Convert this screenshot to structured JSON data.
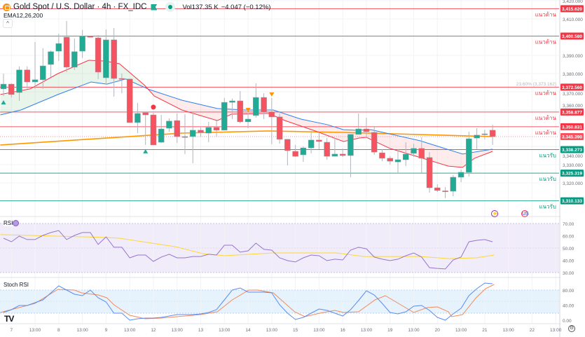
{
  "header": {
    "title": "Gold Spot / U.S. Dollar · 4h · FX_IDC",
    "volume": "Vol137.35 K",
    "change": "−4.047 (−0.12%)",
    "indicator": "EMA12,26,200",
    "collapse_icon": "^"
  },
  "colors": {
    "up": "#22ab94",
    "down": "#f7525f",
    "ema12": "#f23645",
    "ema26": "#2f80ed",
    "ema200": "#ff9800",
    "resistance": "#f23645",
    "support": "#089981",
    "rsi": "#9575cd",
    "rsi_ma": "#fdd835",
    "stoch_k": "#5b8def",
    "stoch_d": "#f48a5b"
  },
  "price_axis": {
    "ticks": [
      3420,
      3410,
      3390,
      3380,
      3370,
      3360,
      3340,
      3330,
      3320
    ],
    "tick_labels": [
      "3,420.000",
      "3,410.000",
      "3,390.000",
      "3,380.000",
      "3,370.000",
      "3,360.000",
      "3,340.000",
      "3,330.000",
      "3,320.000"
    ],
    "current_price": 3345.39,
    "current_price_label": "3,345.390"
  },
  "levels": [
    {
      "value": 3415.62,
      "price_label": "3,415.620",
      "type": "resistance",
      "label": "แนวต้าน"
    },
    {
      "value": 3400.58,
      "price_label": "3,400.580",
      "type": "resistance",
      "label": "แนวต้าน"
    },
    {
      "value": 3372.56,
      "price_label": "3,372.560",
      "type": "resistance",
      "label": "แนวต้าน"
    },
    {
      "value": 3358.877,
      "price_label": "3,358.877",
      "type": "resistance",
      "label": "แนวต้าน"
    },
    {
      "value": 3350.831,
      "price_label": "3,350.831",
      "type": "resistance",
      "label": "แนวต้าน"
    },
    {
      "value": 3338.273,
      "price_label": "3,338.273",
      "type": "support",
      "label": "แนวรับ"
    },
    {
      "value": 3325.319,
      "price_label": "3,325.319",
      "type": "support",
      "label": "แนวรับ"
    },
    {
      "value": 3310.133,
      "price_label": "3,310.133",
      "type": "support",
      "label": "แนวรับ"
    }
  ],
  "fib_label": "23.60% (3,373.162)",
  "chart_data": {
    "type": "candlestick",
    "ohlc": [
      [
        3371.6,
        3380.0,
        3367.7,
        3374.2
      ],
      [
        3374.2,
        3374.6,
        3366.9,
        3368.5
      ],
      [
        3369.6,
        3383.9,
        3365.0,
        3382.0
      ],
      [
        3382.0,
        3383.9,
        3371.6,
        3375.4
      ],
      [
        3375.4,
        3397.3,
        3371.6,
        3376.6
      ],
      [
        3376.6,
        3393.9,
        3371.6,
        3384.2
      ],
      [
        3385.0,
        3392.7,
        3378.1,
        3392.0
      ],
      [
        3392.3,
        3401.9,
        3387.0,
        3396.5
      ],
      [
        3400.0,
        3408.9,
        3380.8,
        3383.5
      ],
      [
        3383.5,
        3399.2,
        3382.0,
        3392.0
      ],
      [
        3392.3,
        3403.9,
        3388.5,
        3400.4
      ],
      [
        3400.4,
        3400.6,
        3399.8,
        3400.0
      ],
      [
        3399.6,
        3401.2,
        3377.0,
        3380.8
      ],
      [
        3377.7,
        3404.2,
        3374.2,
        3398.5
      ],
      [
        3398.5,
        3405.0,
        3367.3,
        3377.3
      ],
      [
        3377.3,
        3380.0,
        3369.2,
        3377.0
      ],
      [
        3377.0,
        3377.0,
        3353.1,
        3353.1
      ],
      [
        3353.1,
        3363.9,
        3347.3,
        3358.1
      ],
      [
        3358.5,
        3359.2,
        3340.8,
        3357.3
      ],
      [
        3357.3,
        3358.5,
        3340.8,
        3340.8
      ],
      [
        3342.3,
        3357.3,
        3341.9,
        3349.6
      ],
      [
        3350.0,
        3355.4,
        3348.1,
        3353.9
      ],
      [
        3354.2,
        3358.1,
        3341.9,
        3345.4
      ],
      [
        3345.4,
        3357.7,
        3335.8,
        3345.2
      ],
      [
        3345.4,
        3358.9,
        3330.8,
        3348.9
      ],
      [
        3348.9,
        3350.4,
        3345.4,
        3347.7
      ],
      [
        3347.3,
        3353.5,
        3342.3,
        3350.4
      ],
      [
        3350.4,
        3354.2,
        3345.4,
        3348.9
      ],
      [
        3348.9,
        3366.6,
        3348.9,
        3364.2
      ],
      [
        3364.2,
        3366.2,
        3355.0,
        3365.0
      ],
      [
        3365.0,
        3370.4,
        3352.7,
        3353.5
      ],
      [
        3353.5,
        3358.1,
        3350.0,
        3355.0
      ],
      [
        3357.0,
        3374.6,
        3355.8,
        3366.9
      ],
      [
        3366.9,
        3369.2,
        3355.0,
        3358.9
      ],
      [
        3358.9,
        3366.6,
        3341.2,
        3356.2
      ],
      [
        3356.2,
        3358.1,
        3341.5,
        3343.9
      ],
      [
        3343.9,
        3343.9,
        3329.6,
        3337.7
      ],
      [
        3337.3,
        3340.8,
        3334.2,
        3334.6
      ],
      [
        3335.4,
        3340.0,
        3331.5,
        3339.2
      ],
      [
        3339.2,
        3348.5,
        3336.2,
        3343.5
      ],
      [
        3343.5,
        3348.1,
        3338.5,
        3342.7
      ],
      [
        3342.3,
        3344.6,
        3332.7,
        3334.6
      ],
      [
        3334.6,
        3344.6,
        3334.6,
        3335.8
      ],
      [
        3335.8,
        3338.9,
        3334.2,
        3335.0
      ],
      [
        3335.0,
        3346.6,
        3323.1,
        3346.6
      ],
      [
        3346.6,
        3358.1,
        3346.6,
        3349.6
      ],
      [
        3349.6,
        3355.8,
        3344.6,
        3348.1
      ],
      [
        3347.7,
        3351.2,
        3335.4,
        3336.9
      ],
      [
        3336.5,
        3338.5,
        3331.9,
        3333.5
      ],
      [
        3333.5,
        3334.6,
        3330.0,
        3331.9
      ],
      [
        3331.5,
        3338.5,
        3325.4,
        3332.7
      ],
      [
        3332.7,
        3342.3,
        3329.2,
        3335.8
      ],
      [
        3336.2,
        3341.5,
        3334.2,
        3338.9
      ],
      [
        3338.9,
        3345.0,
        3325.4,
        3333.5
      ],
      [
        3333.9,
        3336.9,
        3314.6,
        3317.3
      ],
      [
        3317.3,
        3319.2,
        3315.0,
        3315.8
      ],
      [
        3315.6,
        3317.7,
        3311.6,
        3315.4
      ],
      [
        3315.4,
        3324.2,
        3312.7,
        3323.1
      ],
      [
        3323.1,
        3327.3,
        3320.4,
        3325.8
      ],
      [
        3325.8,
        3348.1,
        3323.5,
        3344.2
      ],
      [
        3344.6,
        3350.0,
        3338.5,
        3346.2
      ],
      [
        3346.6,
        3349.2,
        3343.9,
        3346.9
      ],
      [
        3348.9,
        3351.9,
        3340.8,
        3345.4
      ]
    ],
    "ema12": [
      [
        -0.4,
        3368.5
      ],
      [
        3.4,
        3371.6
      ],
      [
        6.9,
        3380.0
      ],
      [
        10.8,
        3387.3
      ],
      [
        12.9,
        3386.9
      ],
      [
        14.7,
        3385.4
      ],
      [
        17.9,
        3373.5
      ],
      [
        19.1,
        3367.7
      ],
      [
        22.6,
        3360.0
      ],
      [
        27.1,
        3354.2
      ],
      [
        28.9,
        3357.7
      ],
      [
        33.6,
        3358.1
      ],
      [
        35.7,
        3354.2
      ],
      [
        39.5,
        3348.5
      ],
      [
        43.1,
        3342.7
      ],
      [
        45.1,
        3344.6
      ],
      [
        46,
        3345.0
      ],
      [
        49,
        3338.9
      ],
      [
        52,
        3335.0
      ],
      [
        56.4,
        3329.2
      ],
      [
        58.2,
        3328.5
      ],
      [
        59.7,
        3333.5
      ],
      [
        62,
        3337.3
      ]
    ],
    "ema26": [
      [
        -0.4,
        3357.3
      ],
      [
        2.2,
        3360.0
      ],
      [
        6.9,
        3368.5
      ],
      [
        11.1,
        3375.4
      ],
      [
        13.1,
        3374.2
      ],
      [
        15.5,
        3377.0
      ],
      [
        18.5,
        3371.2
      ],
      [
        22.6,
        3365.4
      ],
      [
        27.1,
        3360.8
      ],
      [
        30.6,
        3360.0
      ],
      [
        34.2,
        3360.0
      ],
      [
        37.7,
        3355.0
      ],
      [
        41,
        3352.0
      ],
      [
        43.1,
        3349.2
      ],
      [
        44.8,
        3348.9
      ],
      [
        46.6,
        3349.2
      ],
      [
        52.8,
        3343.1
      ],
      [
        58.2,
        3335.8
      ],
      [
        62,
        3338.5
      ]
    ],
    "ema200": [
      [
        -0.4,
        3340.8
      ],
      [
        22.6,
        3347.3
      ],
      [
        33.6,
        3348.5
      ],
      [
        43.1,
        3347.7
      ],
      [
        62,
        3345.4
      ]
    ],
    "signals": [
      {
        "type": "buy-triangle",
        "index": 0
      },
      {
        "type": "buy-triangle",
        "index": 18
      },
      {
        "type": "red-dot",
        "index": 19
      },
      {
        "type": "sell-triangle",
        "index": 31
      },
      {
        "type": "sell-triangle",
        "index": 34
      }
    ],
    "x_labels": [
      {
        "index": 1,
        "text": "7"
      },
      {
        "index": 4,
        "text": "13:00"
      },
      {
        "index": 7,
        "text": "8"
      },
      {
        "index": 10,
        "text": "13:00"
      },
      {
        "index": 13,
        "text": "9"
      },
      {
        "index": 16,
        "text": "13:00"
      },
      {
        "index": 19,
        "text": "12"
      },
      {
        "index": 22,
        "text": "13:00"
      },
      {
        "index": 25,
        "text": "13"
      },
      {
        "index": 28,
        "text": "13:00"
      },
      {
        "index": 31,
        "text": "14"
      },
      {
        "index": 34,
        "text": "13:00"
      },
      {
        "index": 37,
        "text": "15"
      },
      {
        "index": 40,
        "text": "13:00"
      },
      {
        "index": 43,
        "text": "16"
      },
      {
        "index": 46,
        "text": "13:00"
      },
      {
        "index": 49,
        "text": "19"
      },
      {
        "index": 52,
        "text": "13:00"
      },
      {
        "index": 55,
        "text": "20"
      },
      {
        "index": 58,
        "text": "13:00"
      },
      {
        "index": 61,
        "text": "21"
      },
      {
        "index": 64,
        "text": "13:00"
      },
      {
        "index": 67,
        "text": "22"
      },
      {
        "index": 70,
        "text": "13:00"
      }
    ]
  },
  "rsi": {
    "label": "RSI",
    "ticks": [
      70,
      60,
      50,
      40,
      30
    ],
    "tick_labels": [
      "70.00",
      "60.00",
      "50.00",
      "40.00",
      "30.00"
    ],
    "values": [
      58,
      55.1,
      59.7,
      56.9,
      56.9,
      60.3,
      62.6,
      64.3,
      56.9,
      60.3,
      62.6,
      62.6,
      52.9,
      59.1,
      50.6,
      50.6,
      42.0,
      44.3,
      44.3,
      39.1,
      42.6,
      44.9,
      42.0,
      42.0,
      43.1,
      43.1,
      44.9,
      44.3,
      52.3,
      52.3,
      46.6,
      47.7,
      54.0,
      48.9,
      48.3,
      42.0,
      39.7,
      38.6,
      42.0,
      44.3,
      43.7,
      39.7,
      40.9,
      40.3,
      48.3,
      50.6,
      49.4,
      42.6,
      40.9,
      39.7,
      40.9,
      43.7,
      46.0,
      42.6,
      34.0,
      33.4,
      32.9,
      40.3,
      42.6,
      55.1,
      56.3,
      56.9,
      55.1
    ],
    "ma": [
      [
        -0.4,
        60.9
      ],
      [
        12.9,
        58.6
      ],
      [
        14.7,
        58
      ],
      [
        21.8,
        51.1
      ],
      [
        25.3,
        45.4
      ],
      [
        28,
        43.7
      ],
      [
        32.4,
        45.4
      ],
      [
        34.2,
        46
      ],
      [
        42.2,
        46
      ],
      [
        45.7,
        43.1
      ],
      [
        52.8,
        43.1
      ],
      [
        56.4,
        41.4
      ],
      [
        59.9,
        42
      ],
      [
        62.2,
        44.3
      ]
    ]
  },
  "stoch_rsi": {
    "label": "Stoch RSI",
    "ticks": [
      80,
      40,
      0
    ],
    "tick_labels": [
      "80.00",
      "40.00",
      "0.00"
    ],
    "k": [
      20.5,
      27.9,
      39,
      39,
      46.5,
      54,
      72.6,
      91.2,
      80,
      68.8,
      65.1,
      80,
      59.5,
      48.4,
      18.6,
      18.6,
      0,
      3.7,
      5.6,
      5.6,
      7.4,
      11.2,
      14.9,
      14.9,
      14.9,
      16.7,
      20.5,
      27.9,
      54,
      80,
      85.6,
      74.4,
      74.4,
      74.4,
      72.6,
      40.9,
      18.6,
      1.9,
      7.4,
      18.6,
      29.8,
      26,
      18.6,
      11.2,
      27.9,
      52.1,
      78.1,
      67,
      44.7,
      20.5,
      16.7,
      22.3,
      37.2,
      39,
      26,
      7.4,
      0,
      16.7,
      31.6,
      65.1,
      83.7,
      98.6,
      96.7
    ],
    "d": [
      [
        -0.4,
        20.5
      ],
      [
        4,
        44.7
      ],
      [
        6.9,
        81.9
      ],
      [
        9,
        80
      ],
      [
        9.9,
        72.6
      ],
      [
        12,
        67
      ],
      [
        13.1,
        59.5
      ],
      [
        14,
        40.9
      ],
      [
        16,
        13
      ],
      [
        18,
        3.7
      ],
      [
        20,
        5.6
      ],
      [
        25,
        14.9
      ],
      [
        27.1,
        22.3
      ],
      [
        29,
        54
      ],
      [
        31.1,
        80
      ],
      [
        32.2,
        80
      ],
      [
        34.2,
        72.6
      ],
      [
        36.9,
        22.3
      ],
      [
        38.2,
        9.3
      ],
      [
        40.1,
        18.6
      ],
      [
        42,
        26
      ],
      [
        43.1,
        20.5
      ],
      [
        45,
        22.3
      ],
      [
        47.1,
        54
      ],
      [
        48.4,
        65.1
      ],
      [
        50.2,
        42.8
      ],
      [
        52,
        20.5
      ],
      [
        53.7,
        33.5
      ],
      [
        55,
        35.3
      ],
      [
        56.4,
        22.3
      ],
      [
        56.8,
        9.3
      ],
      [
        58.2,
        14.9
      ],
      [
        59.9,
        59.5
      ],
      [
        61.1,
        83.7
      ],
      [
        62.2,
        94.9
      ]
    ]
  },
  "icons": {
    "event_lightning": "⚡",
    "event_us_flag": "US",
    "settings": "⚙",
    "tv_logo": "TV"
  }
}
